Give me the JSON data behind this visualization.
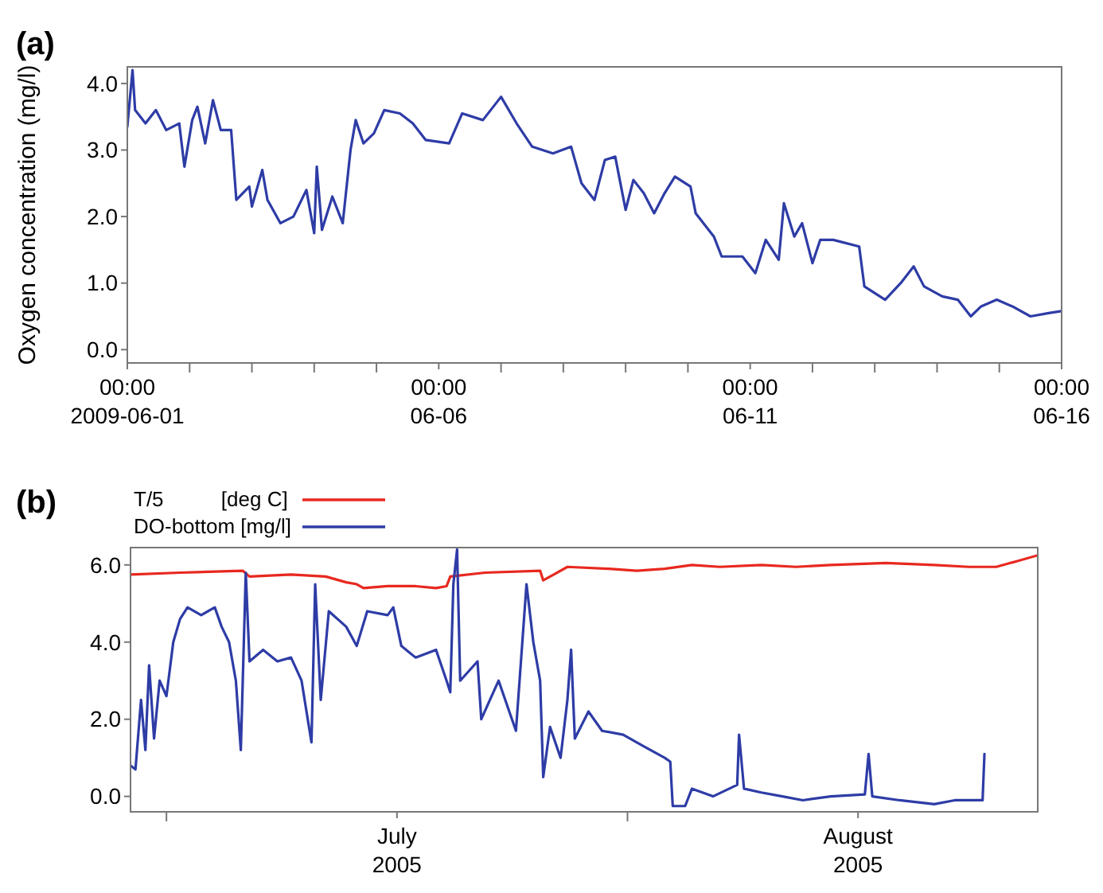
{
  "chart_data": [
    {
      "type": "line",
      "title": "(a)",
      "ylabel": "Oxygen concentration (mg/l)",
      "xlim": [
        "2009-06-01T00:00",
        "2009-06-16T00:00"
      ],
      "ylim": [
        -0.2,
        4.25
      ],
      "yticks": [
        {
          "value": 0,
          "label": "0.0"
        },
        {
          "value": 1,
          "label": "1.0"
        },
        {
          "value": 2,
          "label": "2.0"
        },
        {
          "value": 3,
          "label": "3.0"
        },
        {
          "value": 4,
          "label": "4.0"
        }
      ],
      "xticks": [
        {
          "value": "2009-06-01T00:00",
          "label": "00:00\n2009-06-01"
        },
        {
          "value": "2009-06-02T00:00",
          "label": null
        },
        {
          "value": "2009-06-03T00:00",
          "label": null
        },
        {
          "value": "2009-06-04T00:00",
          "label": null
        },
        {
          "value": "2009-06-05T00:00",
          "label": null
        },
        {
          "value": "2009-06-06T00:00",
          "label": "00:00\n06-06"
        },
        {
          "value": "2009-06-07T00:00",
          "label": null
        },
        {
          "value": "2009-06-08T00:00",
          "label": null
        },
        {
          "value": "2009-06-09T00:00",
          "label": null
        },
        {
          "value": "2009-06-10T00:00",
          "label": null
        },
        {
          "value": "2009-06-11T00:00",
          "label": "00:00\n06-11"
        },
        {
          "value": "2009-06-12T00:00",
          "label": null
        },
        {
          "value": "2009-06-13T00:00",
          "label": null
        },
        {
          "value": "2009-06-14T00:00",
          "label": null
        },
        {
          "value": "2009-06-15T00:00",
          "label": null
        },
        {
          "value": "2009-06-16T00:00",
          "label": "00:00\n06-16"
        }
      ],
      "series": [
        {
          "color": "#2e3ca6",
          "x": [
            "2009-06-01T00:00",
            "2009-06-01T02:00",
            "2009-06-01T03:00",
            "2009-06-01T07:00",
            "2009-06-01T11:00",
            "2009-06-01T15:00",
            "2009-06-01T20:00",
            "2009-06-01T22:00",
            "2009-06-02T01:00",
            "2009-06-02T03:00",
            "2009-06-02T06:00",
            "2009-06-02T09:00",
            "2009-06-02T12:00",
            "2009-06-02T16:00",
            "2009-06-02T18:00",
            "2009-06-02T23:00",
            "2009-06-03T00:00",
            "2009-06-03T04:00",
            "2009-06-03T06:00",
            "2009-06-03T11:00",
            "2009-06-03T16:00",
            "2009-06-03T21:00",
            "2009-06-04T00:00",
            "2009-06-04T01:00",
            "2009-06-04T03:00",
            "2009-06-04T07:00",
            "2009-06-04T11:00",
            "2009-06-04T14:00",
            "2009-06-04T16:00",
            "2009-06-04T19:00",
            "2009-06-04T23:00",
            "2009-06-05T03:00",
            "2009-06-05T09:00",
            "2009-06-05T14:00",
            "2009-06-05T19:00",
            "2009-06-06T04:00",
            "2009-06-06T09:00",
            "2009-06-06T17:00",
            "2009-06-07T00:00",
            "2009-06-07T06:00",
            "2009-06-07T12:00",
            "2009-06-07T20:00",
            "2009-06-08T03:00",
            "2009-06-08T07:00",
            "2009-06-08T12:00",
            "2009-06-08T16:00",
            "2009-06-08T20:00",
            "2009-06-09T00:00",
            "2009-06-09T03:00",
            "2009-06-09T07:00",
            "2009-06-09T11:00",
            "2009-06-09T15:00",
            "2009-06-09T19:00",
            "2009-06-10T01:00",
            "2009-06-10T03:00",
            "2009-06-10T10:00",
            "2009-06-10T13:00",
            "2009-06-10T21:00",
            "2009-06-11T02:00",
            "2009-06-11T06:00",
            "2009-06-11T11:00",
            "2009-06-11T13:00",
            "2009-06-11T17:00",
            "2009-06-11T20:00",
            "2009-06-12T00:00",
            "2009-06-12T03:00",
            "2009-06-12T08:00",
            "2009-06-12T18:00",
            "2009-06-12T20:00",
            "2009-06-13T04:00",
            "2009-06-13T10:00",
            "2009-06-13T15:00",
            "2009-06-13T19:00",
            "2009-06-14T02:00",
            "2009-06-14T08:00",
            "2009-06-14T13:00",
            "2009-06-14T17:00",
            "2009-06-14T23:00",
            "2009-06-15T05:00",
            "2009-06-15T12:00",
            "2009-06-15T19:00",
            "2009-06-16T00:00"
          ],
          "values": [
            3.35,
            4.2,
            3.6,
            3.4,
            3.6,
            3.3,
            3.4,
            2.75,
            3.45,
            3.65,
            3.1,
            3.75,
            3.3,
            3.3,
            2.25,
            2.45,
            2.15,
            2.7,
            2.25,
            1.9,
            2.0,
            2.4,
            1.75,
            2.75,
            1.8,
            2.3,
            1.9,
            3.0,
            3.45,
            3.1,
            3.25,
            3.6,
            3.55,
            3.4,
            3.15,
            3.1,
            3.55,
            3.45,
            3.8,
            3.4,
            3.05,
            2.95,
            3.05,
            2.5,
            2.25,
            2.85,
            2.9,
            2.1,
            2.55,
            2.35,
            2.05,
            2.35,
            2.6,
            2.45,
            2.05,
            1.7,
            1.4,
            1.4,
            1.15,
            1.65,
            1.35,
            2.2,
            1.7,
            1.9,
            1.3,
            1.65,
            1.65,
            1.55,
            0.95,
            0.75,
            1.0,
            1.25,
            0.95,
            0.8,
            0.75,
            0.5,
            0.65,
            0.75,
            0.65,
            0.5,
            0.55,
            0.58
          ]
        }
      ]
    },
    {
      "type": "line",
      "title": "(b)",
      "legend": "top left",
      "xlim": [
        "2005-06-28T14:00",
        "2005-08-28T14:00"
      ],
      "ylim": [
        -0.4,
        6.45
      ],
      "yticks": [
        {
          "value": 0,
          "label": "0.0"
        },
        {
          "value": 2,
          "label": "2.0"
        },
        {
          "value": 4,
          "label": "4.0"
        },
        {
          "value": 6,
          "label": "6.0"
        }
      ],
      "xticks": [
        {
          "value": "2005-07-01T00:00",
          "label": null
        },
        {
          "value": "2005-07-16T12:00",
          "label": "July\n2005"
        },
        {
          "value": "2005-08-01T00:00",
          "label": null
        },
        {
          "value": "2005-08-16T12:00",
          "label": "August\n2005"
        }
      ],
      "series": [
        {
          "name": "T/5          [deg C]",
          "color": "#e8281f",
          "x": [
            "2005-06-28T14:00",
            "2005-07-01T22:00",
            "2005-07-06T03:00",
            "2005-07-06T14:00",
            "2005-07-09T09:00",
            "2005-07-11T17:00",
            "2005-07-13T02:00",
            "2005-07-13T19:00",
            "2005-07-14T06:00",
            "2005-07-15T21:00",
            "2005-07-17T18:00",
            "2005-07-19T03:00",
            "2005-07-19T20:00",
            "2005-07-20T02:00",
            "2005-07-22T10:00",
            "2005-07-26T03:00",
            "2005-07-26T08:00",
            "2005-07-27T01:00",
            "2005-07-27T23:00",
            "2005-07-30T18:00",
            "2005-08-01T15:00",
            "2005-08-03T12:00",
            "2005-08-05T08:00",
            "2005-08-07T05:00",
            "2005-08-10T00:00",
            "2005-08-12T08:00",
            "2005-08-14T16:00",
            "2005-08-18T09:00",
            "2005-08-21T15:00",
            "2005-08-23T23:00",
            "2005-08-25T19:00",
            "2005-08-27T05:00",
            "2005-08-28T14:00"
          ],
          "values": [
            5.75,
            5.8,
            5.85,
            5.7,
            5.75,
            5.7,
            5.55,
            5.5,
            5.4,
            5.45,
            5.45,
            5.4,
            5.45,
            5.7,
            5.8,
            5.85,
            5.6,
            5.75,
            5.95,
            5.9,
            5.85,
            5.9,
            6.0,
            5.95,
            6.0,
            5.95,
            6.0,
            6.05,
            6.0,
            5.95,
            5.95,
            6.1,
            6.25
          ]
        },
        {
          "name": "DO-bottom [mg/l]",
          "color": "#2e3ca6",
          "x": [
            "2005-06-28T14:00",
            "2005-06-28T22:00",
            "2005-06-29T07:00",
            "2005-06-29T14:00",
            "2005-06-29T20:00",
            "2005-06-30T04:00",
            "2005-06-30T13:00",
            "2005-07-01T00:00",
            "2005-07-01T11:00",
            "2005-07-01T22:00",
            "2005-07-02T10:00",
            "2005-07-03T08:00",
            "2005-07-04T06:00",
            "2005-07-04T17:00",
            "2005-07-05T05:00",
            "2005-07-05T16:00",
            "2005-07-06T00:00",
            "2005-07-06T08:00",
            "2005-07-06T14:00",
            "2005-07-07T12:00",
            "2005-07-08T11:00",
            "2005-07-09T09:00",
            "2005-07-10T02:00",
            "2005-07-10T18:00",
            "2005-07-11T00:00",
            "2005-07-11T09:00",
            "2005-07-11T22:00",
            "2005-07-13T02:00",
            "2005-07-13T19:00",
            "2005-07-14T12:00",
            "2005-07-15T21:00",
            "2005-07-16T06:00",
            "2005-07-16T19:00",
            "2005-07-17T18:00",
            "2005-07-19T03:00",
            "2005-07-19T20:00",
            "2005-07-20T02:00",
            "2005-07-20T07:00",
            "2005-07-20T13:00",
            "2005-07-20T18:00",
            "2005-07-21T22:00",
            "2005-07-22T04:00",
            "2005-07-23T08:00",
            "2005-07-24T12:00",
            "2005-07-25T05:00",
            "2005-07-25T16:00",
            "2005-07-26T03:00",
            "2005-07-26T08:00",
            "2005-07-26T19:00",
            "2005-07-27T12:00",
            "2005-07-27T23:00",
            "2005-07-28T05:00",
            "2005-07-28T11:00",
            "2005-07-29T09:00",
            "2005-07-30T07:00",
            "2005-07-31T17:00",
            "2005-08-02T02:00",
            "2005-08-03T12:00",
            "2005-08-03T21:00",
            "2005-08-04T01:00",
            "2005-08-04T21:00",
            "2005-08-05T08:00",
            "2005-08-06T18:00",
            "2005-08-08T09:00",
            "2005-08-08T12:00",
            "2005-08-08T20:00",
            "2005-08-10T00:00",
            "2005-08-11T10:00",
            "2005-08-12T19:00",
            "2005-08-14T16:00",
            "2005-08-16T23:00",
            "2005-08-17T05:00",
            "2005-08-17T11:00",
            "2005-08-19T07:00",
            "2005-08-21T15:00",
            "2005-08-23T00:00",
            "2005-08-24T21:00",
            "2005-08-25T00:00"
          ],
          "values": [
            0.8,
            0.7,
            2.5,
            1.2,
            3.4,
            1.5,
            3.0,
            2.6,
            4.0,
            4.6,
            4.9,
            4.7,
            4.9,
            4.4,
            4.0,
            3.0,
            1.2,
            5.8,
            3.5,
            3.8,
            3.5,
            3.6,
            3.0,
            1.4,
            5.5,
            2.5,
            4.8,
            4.4,
            3.9,
            4.8,
            4.7,
            4.9,
            3.9,
            3.6,
            3.8,
            3.0,
            2.7,
            5.5,
            6.4,
            3.0,
            3.5,
            2.0,
            3.0,
            1.7,
            5.5,
            4.0,
            3.0,
            0.5,
            1.8,
            1.0,
            2.5,
            3.8,
            1.5,
            2.2,
            1.7,
            1.6,
            1.3,
            1.0,
            0.9,
            -0.25,
            -0.25,
            0.2,
            0.0,
            0.3,
            1.6,
            0.2,
            0.1,
            0.0,
            -0.1,
            0.0,
            0.05,
            1.1,
            0.0,
            -0.1,
            -0.2,
            -0.1,
            -0.1,
            1.1
          ]
        }
      ]
    }
  ]
}
